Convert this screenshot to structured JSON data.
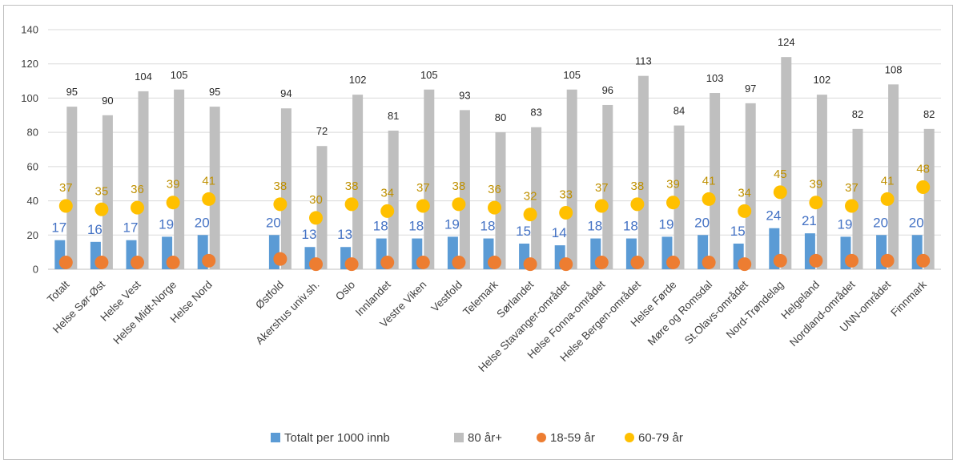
{
  "chart_data": {
    "type": "bar",
    "ylim": [
      0,
      140
    ],
    "yticks": [
      0,
      20,
      40,
      60,
      80,
      100,
      120,
      140
    ],
    "grid": true,
    "legend_position": "bottom",
    "categories": [
      "Totalt",
      "Helse Sør-Øst",
      "Helse Vest",
      "Helse Midt-Norge",
      "Helse Nord",
      "",
      "Østfold",
      "Akershus univ.sh.",
      "Oslo",
      "Innlandet",
      "Vestre Viken",
      "Vestfold",
      "Telemark",
      "Sørlandet",
      "Helse Stavanger-området",
      "Helse Fonna-området",
      "Helse Bergen-området",
      "Helse Førde",
      "Møre og Romsdal",
      "St.Olavs-området",
      "Nord-Trøndelag",
      "Helgeland",
      "Nordland-området",
      "UNN-området",
      "Finnmark"
    ],
    "series": [
      {
        "name": "Totalt per 1000 innb",
        "kind": "bar",
        "color": "#5b9bd5",
        "label_color": "#4472c4",
        "values": [
          17,
          16,
          17,
          19,
          20,
          null,
          20,
          13,
          13,
          18,
          18,
          19,
          18,
          15,
          14,
          18,
          18,
          19,
          20,
          15,
          24,
          21,
          19,
          20,
          20
        ]
      },
      {
        "name": "80 år+",
        "kind": "bar",
        "color": "#bfbfbf",
        "label_color": "#262626",
        "values": [
          95,
          90,
          104,
          105,
          95,
          null,
          94,
          72,
          102,
          81,
          105,
          93,
          80,
          83,
          105,
          96,
          113,
          84,
          103,
          97,
          124,
          102,
          82,
          108,
          82
        ]
      },
      {
        "name": "18-59 år",
        "kind": "marker",
        "color": "#ed7d31",
        "values": [
          4,
          4,
          4,
          4,
          5,
          null,
          6,
          3,
          3,
          4,
          4,
          4,
          4,
          3,
          3,
          4,
          4,
          4,
          4,
          3,
          5,
          5,
          5,
          5,
          5
        ]
      },
      {
        "name": "60-79 år",
        "kind": "marker",
        "color": "#ffc000",
        "label_color": "#bf9000",
        "values": [
          37,
          35,
          36,
          39,
          41,
          null,
          38,
          30,
          38,
          34,
          37,
          38,
          36,
          32,
          33,
          37,
          38,
          39,
          41,
          34,
          45,
          39,
          37,
          41,
          48
        ]
      }
    ]
  }
}
